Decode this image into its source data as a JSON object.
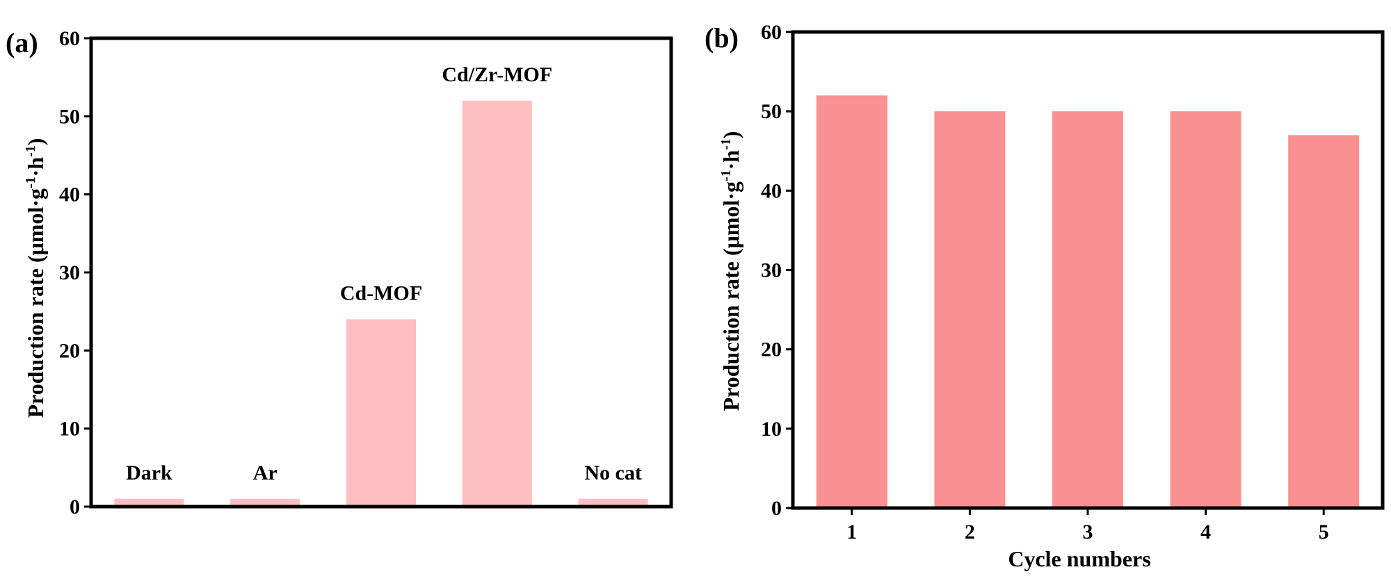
{
  "chart_data": [
    {
      "type": "bar",
      "panel_label": "(a)",
      "title": "",
      "xlabel": "",
      "ylabel": "Production rate (μmol·g",
      "ylabel_sup1": "-1",
      "ylabel_mid": "·h",
      "ylabel_sup2": "-1",
      "ylabel_end": ")",
      "ylim": [
        0,
        60
      ],
      "yticks": [
        0,
        10,
        20,
        30,
        40,
        50,
        60
      ],
      "categories": [
        "Dark",
        "Ar",
        "Cd-MOF",
        "Cd/Zr-MOF",
        "No cat"
      ],
      "values": [
        1,
        1,
        24,
        52,
        1
      ],
      "bar_color": "#fdbfbf",
      "grid": false
    },
    {
      "type": "bar",
      "panel_label": "(b)",
      "title": "",
      "xlabel": "Cycle numbers",
      "ylabel": "Production rate (μmol·g",
      "ylabel_sup1": "-1",
      "ylabel_mid": "·h",
      "ylabel_sup2": "-1",
      "ylabel_end": ")",
      "ylim": [
        0,
        60
      ],
      "yticks": [
        0,
        10,
        20,
        30,
        40,
        50,
        60
      ],
      "categories": [
        "1",
        "2",
        "3",
        "4",
        "5"
      ],
      "values": [
        52,
        50,
        50,
        50,
        47
      ],
      "bar_color": "#f99092",
      "grid": false
    }
  ]
}
